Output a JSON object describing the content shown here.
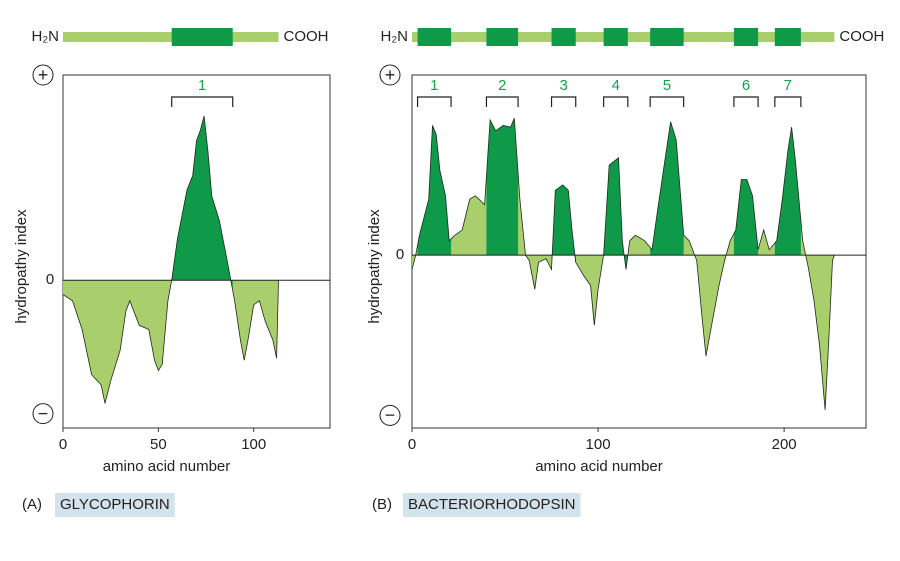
{
  "chart_data": [
    {
      "type": "area",
      "panel": "(A)",
      "name": "GLYCOPHORIN",
      "n_terminus": "H₂N",
      "c_terminus": "COOH",
      "x_label": "amino acid number",
      "y_label": "hydropathy index",
      "xlim": [
        0,
        140
      ],
      "xticks": [
        0,
        50,
        100
      ],
      "ylim": [
        -0.72,
        1
      ],
      "yticks": [
        {
          "value": 1,
          "label": "+"
        },
        0,
        {
          "value": -0.65,
          "label": "−"
        }
      ],
      "colors": {
        "hydrophobic": "#0f9a4a",
        "hydrophilic": "#a8cf6c"
      },
      "segments": [
        {
          "label": "1",
          "start": 57,
          "end": 89
        }
      ],
      "x": [
        0,
        5,
        10,
        15,
        20,
        22,
        25,
        30,
        33,
        35,
        40,
        45,
        48,
        50,
        52,
        55,
        57,
        60,
        65,
        68,
        70,
        72,
        74,
        76,
        78,
        82,
        86,
        88,
        90,
        93,
        95,
        97,
        100,
        103,
        106,
        110,
        112,
        113
      ],
      "values": [
        -0.07,
        -0.1,
        -0.24,
        -0.46,
        -0.51,
        -0.6,
        -0.49,
        -0.34,
        -0.15,
        -0.1,
        -0.22,
        -0.24,
        -0.39,
        -0.44,
        -0.41,
        -0.1,
        0,
        0.2,
        0.44,
        0.51,
        0.68,
        0.73,
        0.8,
        0.63,
        0.41,
        0.29,
        0.1,
        0,
        -0.1,
        -0.29,
        -0.39,
        -0.29,
        -0.12,
        -0.1,
        -0.2,
        -0.29,
        -0.38,
        0
      ]
    },
    {
      "type": "area",
      "panel": "(B)",
      "name": "BACTERIORHODOPSIN",
      "n_terminus": "H₂N",
      "c_terminus": "COOH",
      "x_label": "amino acid number",
      "y_label": "hydropathy index",
      "xlim": [
        0,
        244
      ],
      "xticks": [
        0,
        100,
        200
      ],
      "ylim": [
        -0.96,
        1
      ],
      "yticks": [
        {
          "value": 1,
          "label": "+"
        },
        0,
        {
          "value": -0.89,
          "label": "−"
        }
      ],
      "colors": {
        "hydrophobic": "#0f9a4a",
        "hydrophilic": "#a8cf6c"
      },
      "segments": [
        {
          "label": "1",
          "start": 3,
          "end": 21
        },
        {
          "label": "2",
          "start": 40,
          "end": 57
        },
        {
          "label": "3",
          "start": 75,
          "end": 88
        },
        {
          "label": "4",
          "start": 103,
          "end": 116
        },
        {
          "label": "5",
          "start": 128,
          "end": 146
        },
        {
          "label": "6",
          "start": 173,
          "end": 186
        },
        {
          "label": "7",
          "start": 195,
          "end": 209
        }
      ],
      "x": [
        0,
        2,
        4,
        9,
        11,
        13,
        15,
        18,
        20,
        23,
        27,
        31,
        34,
        39,
        42,
        45,
        49,
        53,
        55,
        58,
        61,
        63,
        66,
        68,
        72,
        75,
        77,
        81,
        84,
        86,
        88,
        92,
        96,
        98,
        100,
        103,
        106,
        111,
        113,
        115,
        117,
        120,
        125,
        129,
        132,
        136,
        139,
        142,
        146,
        149,
        153,
        156,
        158,
        161,
        165,
        168,
        171,
        174,
        177,
        180,
        183,
        186,
        189,
        192,
        196,
        199,
        202,
        204,
        206,
        210,
        213,
        216,
        219,
        222,
        224,
        226,
        227
      ],
      "values": [
        -0.08,
        0,
        0.11,
        0.31,
        0.72,
        0.67,
        0.47,
        0.33,
        0.08,
        0.11,
        0.14,
        0.31,
        0.33,
        0.28,
        0.75,
        0.69,
        0.72,
        0.71,
        0.76,
        0.31,
        0,
        -0.03,
        -0.19,
        -0.04,
        -0.02,
        -0.08,
        0.36,
        0.39,
        0.36,
        0.14,
        -0.04,
        -0.11,
        -0.17,
        -0.39,
        -0.19,
        0,
        0.5,
        0.54,
        0.08,
        -0.08,
        0.08,
        0.11,
        0.08,
        0.03,
        0.25,
        0.53,
        0.74,
        0.64,
        0.11,
        0.08,
        -0.03,
        -0.36,
        -0.56,
        -0.39,
        -0.17,
        -0.03,
        0.08,
        0.14,
        0.42,
        0.42,
        0.33,
        0.03,
        0.14,
        0.03,
        0.08,
        0.31,
        0.58,
        0.71,
        0.53,
        0.08,
        -0.07,
        -0.25,
        -0.5,
        -0.86,
        -0.47,
        -0.03,
        0
      ]
    }
  ]
}
